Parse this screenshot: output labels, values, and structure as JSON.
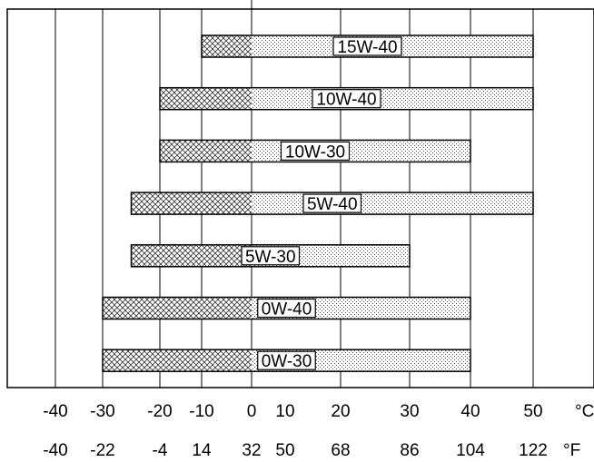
{
  "chart_data": {
    "type": "bar",
    "orientation": "horizontal-range",
    "title": "",
    "xlabel": "",
    "ylabel": "",
    "x_unit_primary": "°C",
    "x_unit_secondary": "°F",
    "xlim": [
      -40,
      50
    ],
    "grid": true,
    "celsius_ticks": [
      "-40",
      "-30",
      "-20",
      "-10",
      "0",
      "10",
      "20",
      "30",
      "40",
      "50"
    ],
    "fahrenheit_ticks": [
      "-40",
      "-22",
      "-4",
      "14",
      "32",
      "50",
      "68",
      "86",
      "104",
      "122"
    ],
    "series": [
      {
        "label": "15W-40",
        "min_c": -10,
        "max_c": 50
      },
      {
        "label": "10W-40",
        "min_c": -20,
        "max_c": 50
      },
      {
        "label": "10W-30",
        "min_c": -20,
        "max_c": 40
      },
      {
        "label": "5W-40",
        "min_c": -25,
        "max_c": 50
      },
      {
        "label": "5W-30",
        "min_c": -25,
        "max_c": 30
      },
      {
        "label": "0W-40",
        "min_c": -30,
        "max_c": 40
      },
      {
        "label": "0W-30",
        "min_c": -30,
        "max_c": 40
      }
    ]
  }
}
